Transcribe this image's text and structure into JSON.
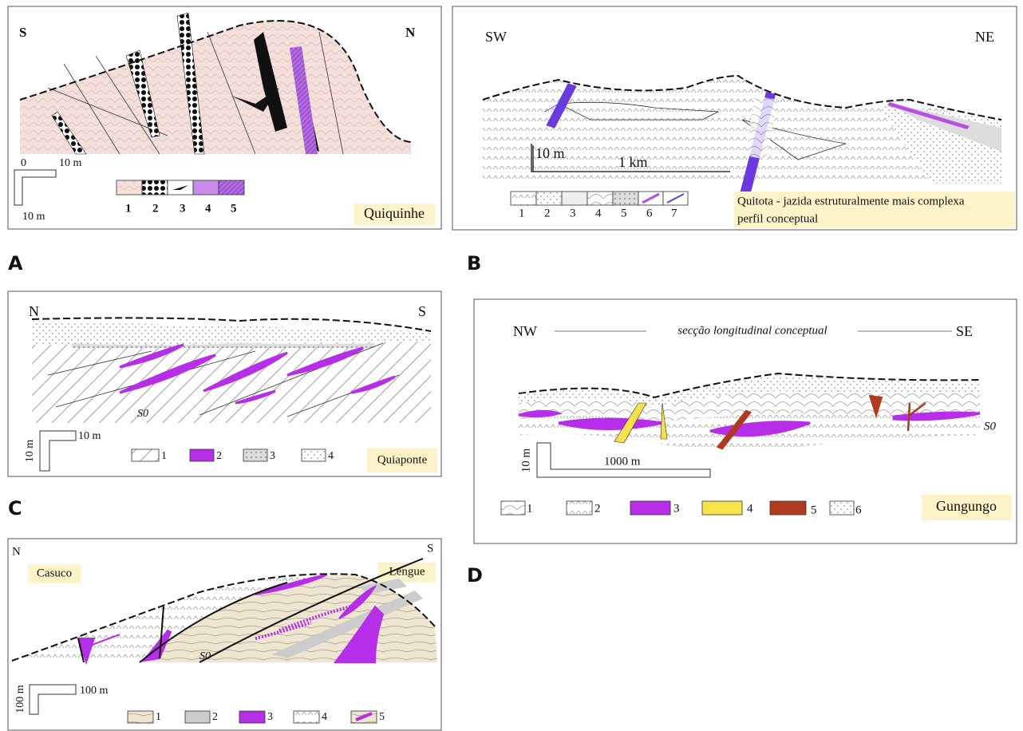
{
  "panels": [
    {
      "letter": "A",
      "left": "S",
      "right": "N",
      "name": "Quiquinhe",
      "scale": [
        "0",
        "10 m",
        "10 m"
      ],
      "legend": [
        "1",
        "2",
        "3",
        "4",
        "5"
      ]
    },
    {
      "letter": "B",
      "left": "SW",
      "right": "NE",
      "scale": [
        "10 m",
        "1 km"
      ],
      "legend": [
        "1",
        "2",
        "3",
        "4",
        "5",
        "6",
        "7"
      ],
      "caption": [
        "Quitota - jazida estruturalmente mais complexa",
        "perfil conceptual"
      ]
    },
    {
      "letter": "C",
      "left": "N",
      "right": "S",
      "name": "Quiaponte",
      "s0": "S0",
      "scale": [
        "10 m",
        "10 m"
      ],
      "legend": [
        "1",
        "2",
        "3",
        "4"
      ]
    },
    {
      "letter": "D",
      "left": "NW",
      "right": "SE",
      "subtitle": "secção longitudinal conceptual",
      "name": "Gungungo",
      "s0": "S0",
      "scale": [
        "10 m",
        "1000 m"
      ],
      "legend": [
        "1",
        "2",
        "3",
        "4",
        "5",
        "6"
      ]
    },
    {
      "left": "N",
      "right": "S",
      "names": [
        "Casuco",
        "Lengue"
      ],
      "s0": "S0",
      "scale": [
        "100 m",
        "100 m"
      ],
      "legend": [
        "1",
        "2",
        "3",
        "4",
        "5"
      ]
    }
  ]
}
